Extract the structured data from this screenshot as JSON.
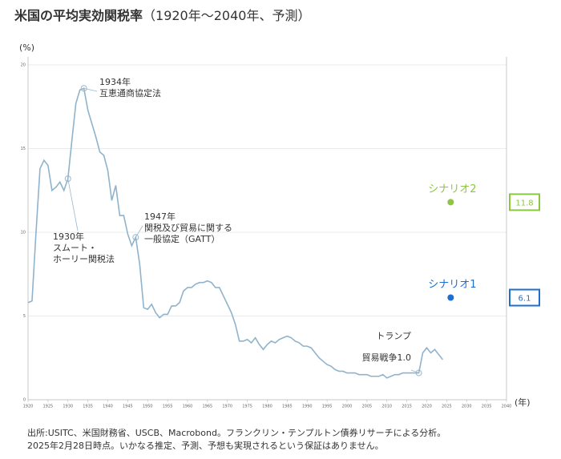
{
  "chart_data": {
    "type": "line",
    "title": "米国の平均実効関税率",
    "subtitle": "（1920年〜2040年、予測）",
    "y_label": "(%)",
    "x_label": "(年)",
    "xlim": [
      1920,
      2040
    ],
    "xticks": [
      1920,
      1925,
      1930,
      1935,
      1940,
      1945,
      1950,
      1955,
      1960,
      1965,
      1970,
      1975,
      1980,
      1985,
      1990,
      1995,
      2000,
      2005,
      2010,
      2015,
      2020,
      2025,
      2030,
      2035,
      2040
    ],
    "ylim": [
      0,
      20
    ],
    "yticks": [
      0,
      5,
      10,
      15,
      20
    ],
    "grid": true,
    "x": [
      1920,
      1921,
      1922,
      1923,
      1924,
      1925,
      1926,
      1927,
      1928,
      1929,
      1930,
      1931,
      1932,
      1933,
      1934,
      1935,
      1936,
      1937,
      1938,
      1939,
      1940,
      1941,
      1942,
      1943,
      1944,
      1945,
      1946,
      1947,
      1948,
      1949,
      1950,
      1951,
      1952,
      1953,
      1954,
      1955,
      1956,
      1957,
      1958,
      1959,
      1960,
      1961,
      1962,
      1963,
      1964,
      1965,
      1966,
      1967,
      1968,
      1969,
      1970,
      1971,
      1972,
      1973,
      1974,
      1975,
      1976,
      1977,
      1978,
      1979,
      1980,
      1981,
      1982,
      1983,
      1984,
      1985,
      1986,
      1987,
      1988,
      1989,
      1990,
      1991,
      1992,
      1993,
      1994,
      1995,
      1996,
      1997,
      1998,
      1999,
      2000,
      2001,
      2002,
      2003,
      2004,
      2005,
      2006,
      2007,
      2008,
      2009,
      2010,
      2011,
      2012,
      2013,
      2014,
      2015,
      2016,
      2017,
      2018,
      2019,
      2020,
      2021,
      2022,
      2023,
      2024
    ],
    "series": [
      {
        "color": "#8fb3cc",
        "values": [
          5.8,
          5.9,
          10,
          13.8,
          14.3,
          14.0,
          12.5,
          12.7,
          13.0,
          12.5,
          13.2,
          15.5,
          17.7,
          18.5,
          18.6,
          17.3,
          16.5,
          15.7,
          14.8,
          14.6,
          13.7,
          11.9,
          12.8,
          11.0,
          11.0,
          9.9,
          9.2,
          9.7,
          8.1,
          5.5,
          5.4,
          5.7,
          5.2,
          4.9,
          5.1,
          5.1,
          5.6,
          5.6,
          5.8,
          6.5,
          6.7,
          6.7,
          6.9,
          7.0,
          7.0,
          7.1,
          7.0,
          6.7,
          6.7,
          6.2,
          5.7,
          5.2,
          4.5,
          3.5,
          3.5,
          3.6,
          3.4,
          3.7,
          3.3,
          3.0,
          3.3,
          3.5,
          3.4,
          3.6,
          3.7,
          3.8,
          3.7,
          3.5,
          3.4,
          3.2,
          3.2,
          3.1,
          2.8,
          2.5,
          2.3,
          2.1,
          2.0,
          1.8,
          1.7,
          1.7,
          1.6,
          1.6,
          1.6,
          1.5,
          1.5,
          1.5,
          1.4,
          1.4,
          1.4,
          1.5,
          1.3,
          1.4,
          1.5,
          1.5,
          1.6,
          1.6,
          1.6,
          1.6,
          1.6,
          2.8,
          3.1,
          2.8,
          3.0,
          2.7,
          2.4
        ]
      }
    ],
    "scenarios": [
      {
        "name": "シナリオ2",
        "color": "#8dc63f",
        "x": 2026,
        "value": 11.8
      },
      {
        "name": "シナリオ1",
        "color": "#1f6fd1",
        "x": 2026,
        "value": 6.1
      }
    ],
    "annotations": [
      {
        "x": 1934,
        "lines": [
          "1934年",
          "互恵通商協定法"
        ]
      },
      {
        "x": 1930,
        "lines": [
          "1930年",
          "スムート・",
          "ホーリー関税法"
        ]
      },
      {
        "x": 1947,
        "lines": [
          "1947年",
          "関税及び貿易に関する",
          "一般協定（GATT）"
        ]
      },
      {
        "x": 2018,
        "lines": [
          "トランプ",
          "貿易戦争1.0"
        ]
      }
    ],
    "footnote": [
      "出所:USITC、米国財務省、USCB、Macrobond。フランクリン・テンプルトン債券リサーチによる分析。",
      "2025年2月28日時点。いかなる推定、予測、予想も実現されるという保証はありません。"
    ]
  }
}
